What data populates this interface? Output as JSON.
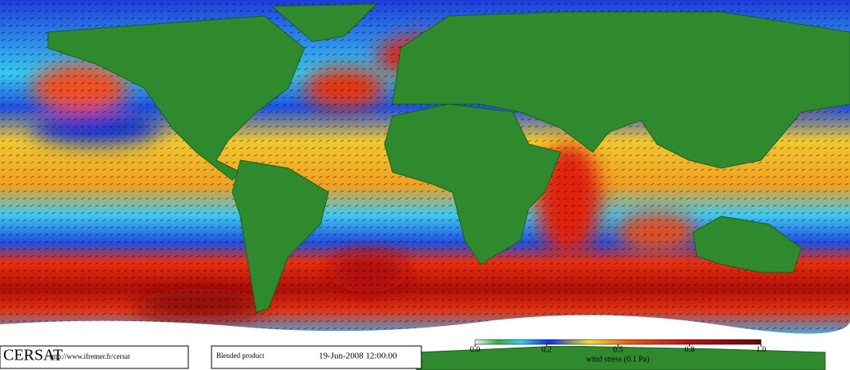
{
  "logo": "CERSAT",
  "url": "http://www.ifremer.fr/cersat",
  "product": "Blended product",
  "timestamp": "19-Jun-2008 12:00:00",
  "colorbar": {
    "label": "wind stress (0.1 Pa)",
    "ticks": [
      {
        "value": 0,
        "label": "0.0"
      },
      0.2,
      0.5,
      0.8,
      {
        "value": 1,
        "label": "1.0"
      }
    ]
  }
}
